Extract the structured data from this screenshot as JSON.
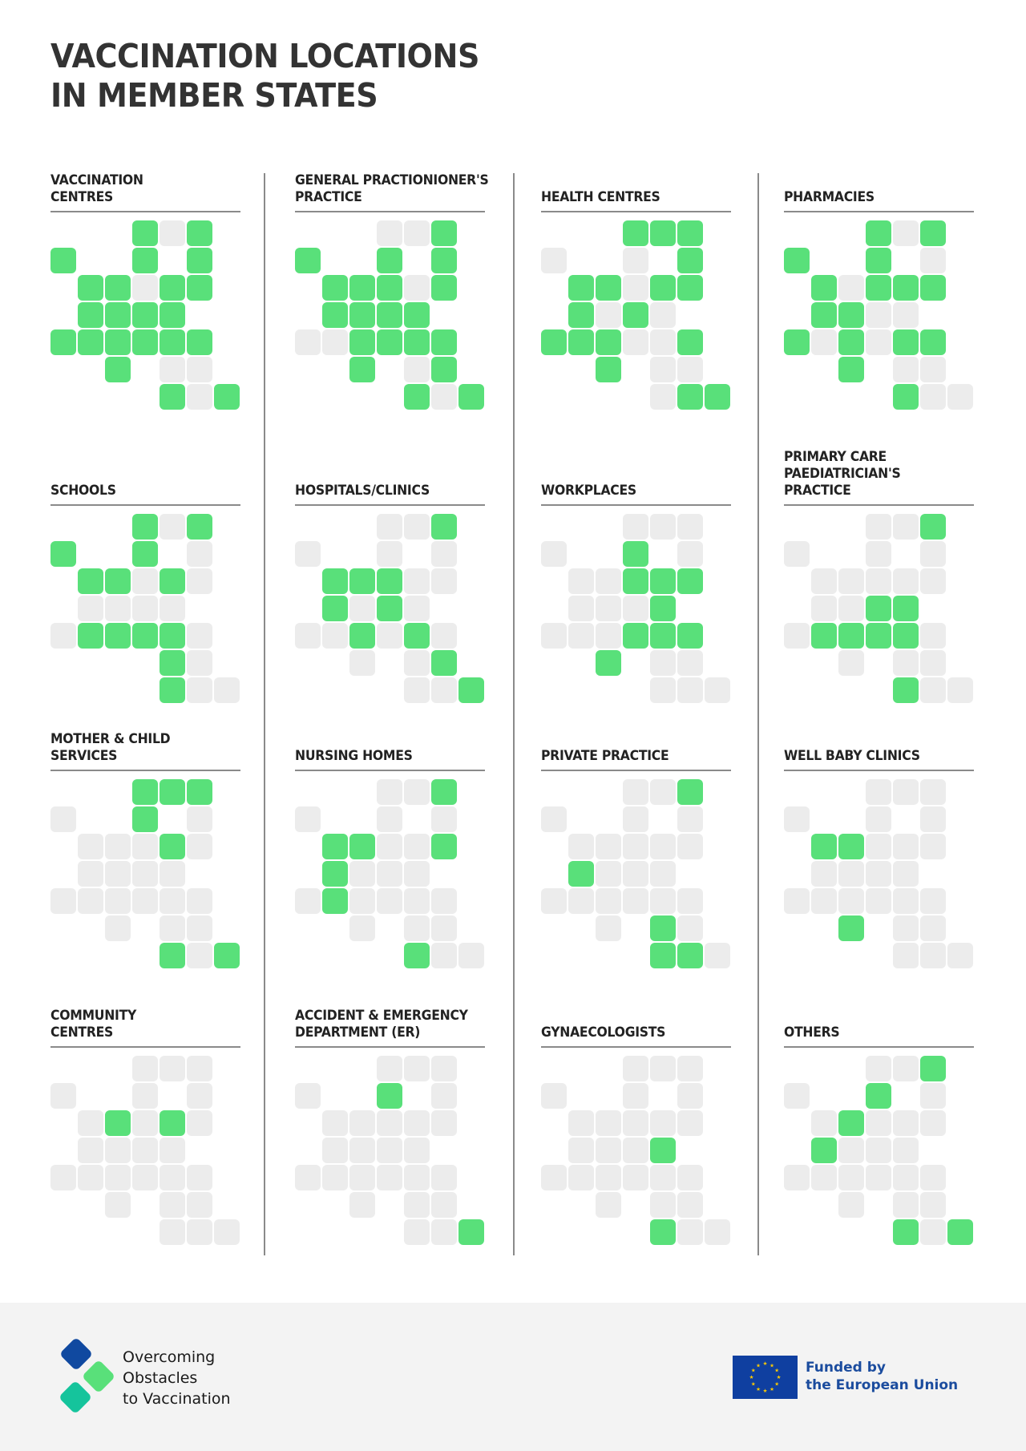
{
  "header": {
    "title": "VACCINATION LOCATIONS\nIN MEMBER STATES"
  },
  "colors": {
    "yes": "#59e07a",
    "no": "#ececec",
    "title_text": "#333333",
    "rule": "#8a8a8a",
    "footer_bg": "#f3f3f3",
    "eu_blue": "#0f3fa0",
    "eu_star": "#ffcc00",
    "eu_text": "#1b4c9e",
    "logo_dark_blue": "#1049a0",
    "logo_green": "#59e07a",
    "logo_teal": "#15c49c"
  },
  "grid_layout": {
    "description": "EU-27 member states as tile map; rows listed with occupied column indices",
    "rows": [
      [
        3,
        4,
        5
      ],
      [
        0,
        3,
        5
      ],
      [
        1,
        2,
        3,
        4,
        5
      ],
      [
        1,
        2,
        3,
        4
      ],
      [
        0,
        1,
        2,
        3,
        4,
        5
      ],
      [
        2,
        4,
        5
      ],
      [
        4,
        5,
        6
      ]
    ]
  },
  "chart_data": {
    "type": "heatmap",
    "title": "VACCINATION LOCATIONS IN MEMBER STATES",
    "legend": {
      "green": "location used",
      "gray": "location not used"
    },
    "cell_encoding": "1 = green (yes), 0 = gray (no), null = cell not shown; row-wise per grid_layout.rows",
    "panels": [
      {
        "label": "VACCINATION CENTRES",
        "cells": [
          [
            1,
            0,
            1
          ],
          [
            1,
            1,
            1
          ],
          [
            1,
            1,
            0,
            1,
            1
          ],
          [
            1,
            1,
            1,
            1
          ],
          [
            1,
            1,
            1,
            1,
            1,
            1
          ],
          [
            1,
            0,
            0
          ],
          [
            1,
            0,
            1
          ]
        ]
      },
      {
        "label": "GENERAL PRACTIONIONER'S PRACTICE",
        "cells": [
          [
            0,
            0,
            1
          ],
          [
            1,
            1,
            1
          ],
          [
            1,
            1,
            1,
            0,
            1
          ],
          [
            1,
            1,
            1,
            1
          ],
          [
            0,
            0,
            1,
            1,
            1,
            1
          ],
          [
            1,
            0,
            1
          ],
          [
            1,
            0,
            1
          ]
        ]
      },
      {
        "label": "HEALTH CENTRES",
        "cells": [
          [
            1,
            1,
            1
          ],
          [
            0,
            0,
            1
          ],
          [
            1,
            1,
            0,
            1,
            1
          ],
          [
            1,
            0,
            1,
            0
          ],
          [
            1,
            1,
            1,
            0,
            0,
            1
          ],
          [
            1,
            0,
            0
          ],
          [
            0,
            1,
            1
          ]
        ]
      },
      {
        "label": "PHARMACIES",
        "cells": [
          [
            1,
            0,
            1
          ],
          [
            1,
            1,
            0
          ],
          [
            1,
            0,
            1,
            1,
            1
          ],
          [
            1,
            1,
            0,
            0
          ],
          [
            1,
            0,
            1,
            0,
            1,
            1
          ],
          [
            1,
            0,
            0
          ],
          [
            1,
            0,
            0
          ]
        ]
      },
      {
        "label": "SCHOOLS",
        "cells": [
          [
            1,
            0,
            1
          ],
          [
            1,
            1,
            0
          ],
          [
            1,
            1,
            0,
            1,
            0
          ],
          [
            0,
            0,
            0,
            0
          ],
          [
            0,
            1,
            1,
            1,
            1,
            0
          ],
          [
            null,
            1,
            0
          ],
          [
            1,
            0,
            0
          ]
        ]
      },
      {
        "label": "HOSPITALS/CLINICS",
        "cells": [
          [
            0,
            0,
            1
          ],
          [
            0,
            0,
            0
          ],
          [
            1,
            1,
            1,
            0,
            0
          ],
          [
            1,
            0,
            1,
            0
          ],
          [
            0,
            0,
            1,
            0,
            1,
            0
          ],
          [
            0,
            0,
            1
          ],
          [
            0,
            0,
            1
          ]
        ]
      },
      {
        "label": "WORKPLACES",
        "cells": [
          [
            0,
            0,
            0
          ],
          [
            0,
            1,
            0
          ],
          [
            0,
            0,
            1,
            1,
            1
          ],
          [
            0,
            0,
            0,
            1
          ],
          [
            0,
            0,
            0,
            1,
            1,
            1
          ],
          [
            1,
            0,
            0
          ],
          [
            0,
            0,
            0
          ]
        ]
      },
      {
        "label": "PRIMARY CARE PAEDIATRICIAN'S PRACTICE",
        "cells": [
          [
            0,
            0,
            1
          ],
          [
            0,
            0,
            0
          ],
          [
            0,
            0,
            0,
            0,
            0
          ],
          [
            0,
            0,
            1,
            1
          ],
          [
            0,
            1,
            1,
            1,
            1,
            0
          ],
          [
            0,
            0,
            0
          ],
          [
            1,
            0,
            0
          ]
        ]
      },
      {
        "label": "MOTHER & CHILD SERVICES",
        "cells": [
          [
            1,
            1,
            1
          ],
          [
            0,
            1,
            0
          ],
          [
            0,
            0,
            0,
            1,
            0
          ],
          [
            0,
            0,
            0,
            0
          ],
          [
            0,
            0,
            0,
            0,
            0,
            0
          ],
          [
            0,
            0,
            0
          ],
          [
            1,
            0,
            1
          ]
        ]
      },
      {
        "label": "NURSING HOMES",
        "cells": [
          [
            0,
            0,
            1
          ],
          [
            0,
            0,
            0
          ],
          [
            1,
            1,
            0,
            0,
            1
          ],
          [
            1,
            0,
            0,
            0
          ],
          [
            0,
            1,
            0,
            0,
            0,
            0
          ],
          [
            0,
            0,
            0
          ],
          [
            1,
            0,
            0
          ]
        ]
      },
      {
        "label": "PRIVATE PRACTICE",
        "cells": [
          [
            0,
            0,
            1
          ],
          [
            0,
            0,
            0
          ],
          [
            0,
            0,
            0,
            0,
            0
          ],
          [
            1,
            0,
            0,
            0
          ],
          [
            0,
            0,
            0,
            0,
            0,
            0
          ],
          [
            0,
            1,
            0
          ],
          [
            1,
            1,
            0
          ]
        ]
      },
      {
        "label": "WELL BABY CLINICS",
        "cells": [
          [
            0,
            0,
            0
          ],
          [
            0,
            0,
            0
          ],
          [
            1,
            1,
            0,
            0,
            0
          ],
          [
            0,
            0,
            0,
            0
          ],
          [
            0,
            0,
            0,
            0,
            0,
            0
          ],
          [
            1,
            0,
            0
          ],
          [
            0,
            0,
            0
          ]
        ]
      },
      {
        "label": "COMMUNITY CENTRES",
        "cells": [
          [
            0,
            0,
            0
          ],
          [
            0,
            0,
            0
          ],
          [
            0,
            1,
            0,
            1,
            0
          ],
          [
            0,
            0,
            0,
            0
          ],
          [
            0,
            0,
            0,
            0,
            0,
            0
          ],
          [
            0,
            0,
            0
          ],
          [
            0,
            0,
            0
          ]
        ]
      },
      {
        "label": "ACCIDENT & EMERGENCY DEPARTMENT (ER)",
        "cells": [
          [
            0,
            0,
            0
          ],
          [
            0,
            1,
            0
          ],
          [
            0,
            0,
            0,
            0,
            0
          ],
          [
            0,
            0,
            0,
            0
          ],
          [
            0,
            0,
            0,
            0,
            0,
            0
          ],
          [
            0,
            0,
            0
          ],
          [
            0,
            0,
            1
          ]
        ]
      },
      {
        "label": "GYNAECOLOGISTS",
        "cells": [
          [
            0,
            0,
            0
          ],
          [
            0,
            0,
            0
          ],
          [
            0,
            0,
            0,
            0,
            0
          ],
          [
            0,
            0,
            0,
            1
          ],
          [
            0,
            0,
            0,
            0,
            0,
            0
          ],
          [
            0,
            0,
            0
          ],
          [
            1,
            0,
            0
          ]
        ]
      },
      {
        "label": "OTHERS",
        "cells": [
          [
            0,
            0,
            1
          ],
          [
            0,
            1,
            0
          ],
          [
            0,
            1,
            0,
            0,
            0
          ],
          [
            1,
            0,
            0,
            0
          ],
          [
            0,
            0,
            0,
            0,
            0,
            0
          ],
          [
            0,
            0,
            0
          ],
          [
            1,
            0,
            1
          ]
        ]
      }
    ]
  },
  "panels_text": [
    "VACCINATION\nCENTRES",
    "GENERAL PRACTIONIONER'S\nPRACTICE",
    "HEALTH CENTRES",
    "PHARMACIES",
    "SCHOOLS",
    "HOSPITALS/CLINICS",
    "WORKPLACES",
    "PRIMARY CARE\nPAEDIATRICIAN'S\nPRACTICE",
    "MOTHER & CHILD\nSERVICES",
    "NURSING HOMES",
    "PRIVATE PRACTICE",
    "WELL BABY CLINICS",
    "COMMUNITY\nCENTRES",
    "ACCIDENT & EMERGENCY\nDEPARTMENT (ER)",
    "GYNAECOLOGISTS",
    "OTHERS"
  ],
  "footer": {
    "logo": {
      "icon": "three-diamonds-logo-icon",
      "line1": "Overcoming",
      "line2": "Obstacles",
      "line3": "to Vaccination"
    },
    "eu": {
      "icon": "eu-flag-icon",
      "line1": "Funded by",
      "line2": "the European Union"
    }
  }
}
